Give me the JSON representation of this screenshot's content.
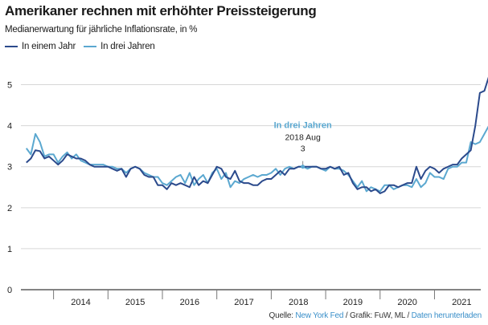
{
  "header": {
    "title": "Amerikaner rechnen mit erhöhter Preissteigerung",
    "subtitle": "Medianerwartung für jährliche Inflationsrate, in %"
  },
  "legend": [
    {
      "label": "In einem Jahr",
      "color": "#2b4a8c"
    },
    {
      "label": "In drei Jahren",
      "color": "#5ba8d0"
    }
  ],
  "annotation": {
    "series_label": "In drei Jahren",
    "date": "2018 Aug",
    "value_label": "3",
    "x": 2018.58,
    "y": 3.0
  },
  "source": {
    "prefix": "Quelle: ",
    "source_link": "New York Fed",
    "middle": " / Grafik: FuW, ML / ",
    "download_link": "Daten herunterladen",
    "link_color": "#3a8fc9"
  },
  "chart_data": {
    "type": "line",
    "title": "Amerikaner rechnen mit erhöhter Preissteigerung",
    "subtitle": "Medianerwartung für jährliche Inflationsrate, in %",
    "xlabel": "",
    "ylabel": "",
    "xlim": [
      2013.4,
      2021.85
    ],
    "ylim": [
      0,
      5.5
    ],
    "x_ticks": [
      2014,
      2015,
      2016,
      2017,
      2018,
      2019,
      2020,
      2021
    ],
    "y_ticks": [
      0,
      1,
      2,
      3,
      4,
      5
    ],
    "grid": "horizontal",
    "legend_position": "top-left",
    "x_start": 2013.5,
    "x_step": 0.083333,
    "series": [
      {
        "name": "In einem Jahr",
        "color": "#2b4a8c",
        "values": [
          3.1,
          3.2,
          3.4,
          3.38,
          3.2,
          3.25,
          3.15,
          3.05,
          3.15,
          3.3,
          3.25,
          3.2,
          3.2,
          3.15,
          3.05,
          3.0,
          3.0,
          3.0,
          3.0,
          2.95,
          2.9,
          2.95,
          2.75,
          2.95,
          3.0,
          2.95,
          2.8,
          2.75,
          2.75,
          2.55,
          2.55,
          2.45,
          2.6,
          2.55,
          2.6,
          2.55,
          2.5,
          2.75,
          2.55,
          2.65,
          2.6,
          2.8,
          3.0,
          2.95,
          2.75,
          2.7,
          2.9,
          2.65,
          2.6,
          2.6,
          2.55,
          2.55,
          2.65,
          2.7,
          2.7,
          2.8,
          2.9,
          2.8,
          2.95,
          2.95,
          3.0,
          3.0,
          3.0,
          3.0,
          3.0,
          2.95,
          2.95,
          3.0,
          2.95,
          3.0,
          2.8,
          2.85,
          2.6,
          2.45,
          2.5,
          2.5,
          2.4,
          2.45,
          2.35,
          2.4,
          2.55,
          2.55,
          2.5,
          2.55,
          2.6,
          2.6,
          3.0,
          2.7,
          2.9,
          3.0,
          2.95,
          2.85,
          2.95,
          3.0,
          3.05,
          3.05,
          3.2,
          3.3,
          3.4,
          4.0,
          4.8,
          4.85,
          5.2
        ]
      },
      {
        "name": "In drei Jahren",
        "color": "#5ba8d0",
        "values": [
          3.45,
          3.3,
          3.8,
          3.6,
          3.25,
          3.3,
          3.3,
          3.1,
          3.25,
          3.35,
          3.2,
          3.3,
          3.15,
          3.1,
          3.05,
          3.05,
          3.05,
          3.05,
          3.0,
          3.0,
          2.95,
          2.95,
          2.85,
          2.95,
          3.0,
          2.95,
          2.85,
          2.8,
          2.75,
          2.75,
          2.6,
          2.55,
          2.65,
          2.75,
          2.8,
          2.6,
          2.85,
          2.55,
          2.7,
          2.8,
          2.6,
          2.85,
          2.95,
          2.7,
          2.85,
          2.5,
          2.65,
          2.6,
          2.7,
          2.75,
          2.8,
          2.75,
          2.8,
          2.8,
          2.85,
          2.95,
          2.8,
          2.95,
          3.0,
          2.95,
          3.0,
          3.0,
          2.95,
          3.0,
          3.0,
          2.95,
          2.9,
          3.0,
          2.95,
          2.95,
          2.9,
          2.8,
          2.65,
          2.5,
          2.65,
          2.4,
          2.5,
          2.45,
          2.4,
          2.55,
          2.55,
          2.45,
          2.5,
          2.55,
          2.55,
          2.5,
          2.7,
          2.5,
          2.6,
          2.85,
          2.75,
          2.75,
          2.7,
          2.95,
          3.0,
          3.0,
          3.1,
          3.1,
          3.6,
          3.55,
          3.6,
          3.8,
          4.0
        ]
      }
    ]
  }
}
